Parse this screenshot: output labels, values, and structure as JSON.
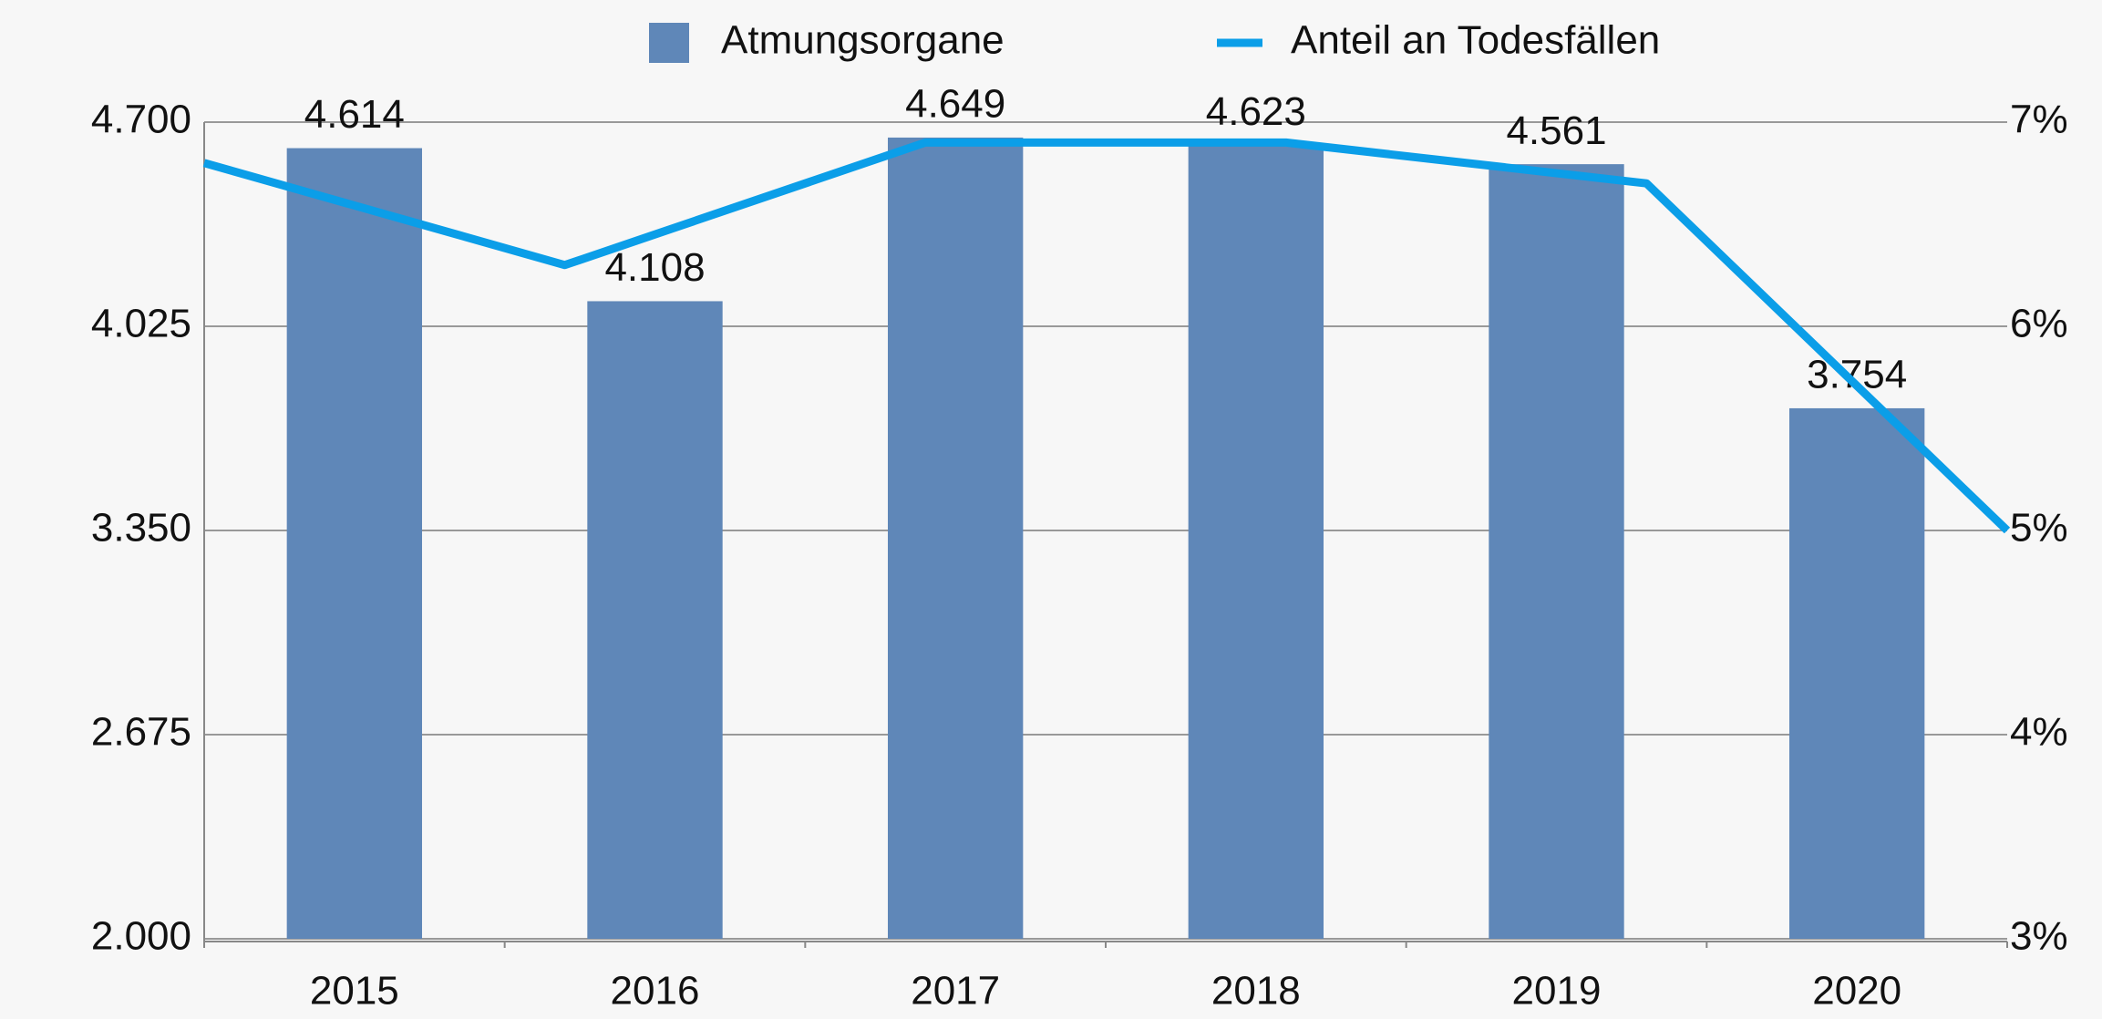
{
  "chart_data": {
    "type": "bar",
    "categories": [
      "2015",
      "2016",
      "2017",
      "2018",
      "2019",
      "2020"
    ],
    "series": [
      {
        "name": "Atmungsorgane",
        "type": "bar",
        "color": "#5f87b8",
        "values": [
          4614,
          4108,
          4649,
          4623,
          4561,
          3754
        ],
        "value_labels": [
          "4.614",
          "4.108",
          "4.649",
          "4.623",
          "4.561",
          "3.754"
        ]
      },
      {
        "name": "Anteil an Todesfällen",
        "type": "line",
        "axis": "y2",
        "color": "#0b9ee8",
        "values": [
          6.8,
          6.3,
          6.9,
          6.9,
          6.7,
          5.0
        ]
      }
    ],
    "ylim": [
      2000,
      4700
    ],
    "yticks": [
      {
        "value": 2000,
        "label": "2.000"
      },
      {
        "value": 2675,
        "label": "2.675"
      },
      {
        "value": 3350,
        "label": "3.350"
      },
      {
        "value": 4025,
        "label": "4.025"
      },
      {
        "value": 4700,
        "label": "4.700"
      }
    ],
    "y2lim": [
      3,
      7
    ],
    "y2ticks": [
      {
        "value": 3,
        "label": "3%"
      },
      {
        "value": 4,
        "label": "4%"
      },
      {
        "value": 5,
        "label": "5%"
      },
      {
        "value": 6,
        "label": "6%"
      },
      {
        "value": 7,
        "label": "7%"
      }
    ],
    "grid": true,
    "legend": "top"
  }
}
